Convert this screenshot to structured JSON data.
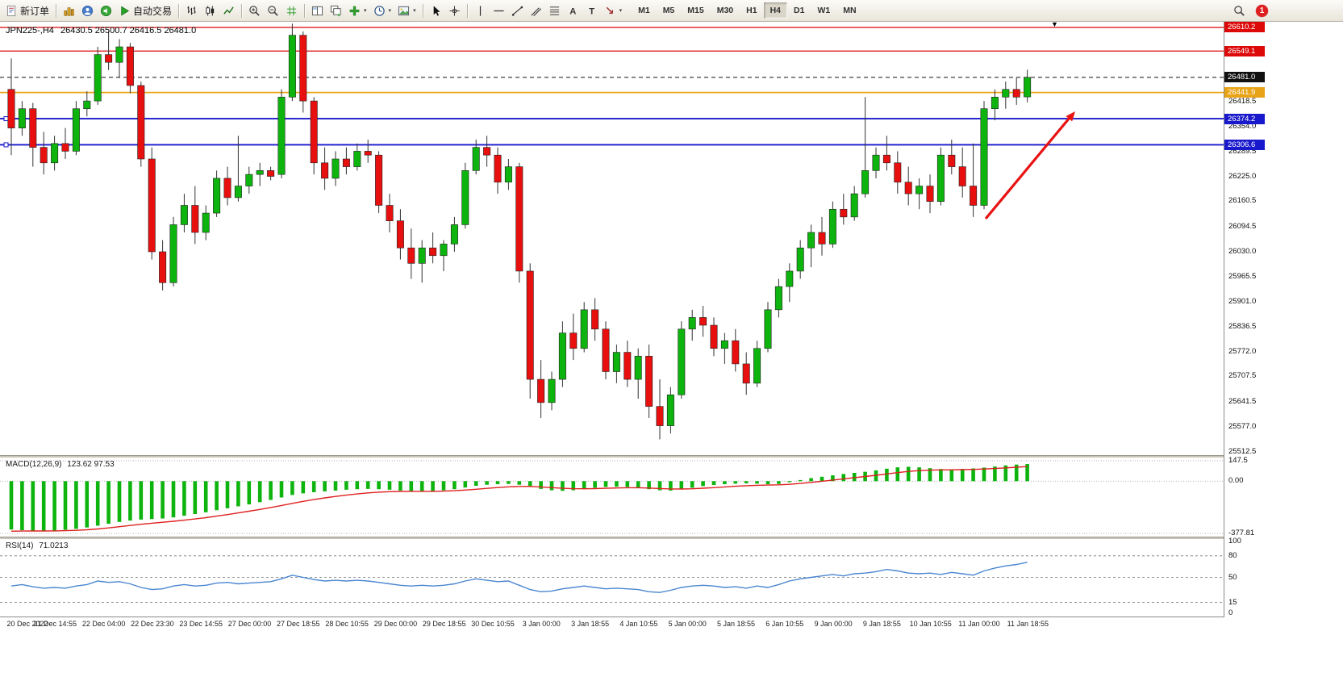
{
  "toolbar": {
    "buttons": [
      {
        "name": "new-order-button",
        "icon": "new-order-icon",
        "label": "新订单"
      },
      {
        "type": "sep"
      },
      {
        "name": "charts-button",
        "icon": "charts-icon"
      },
      {
        "name": "profile-button",
        "icon": "profile-icon"
      },
      {
        "name": "sound-button",
        "icon": "sound-icon"
      },
      {
        "name": "autotrade-button",
        "icon": "play-icon",
        "label": "自动交易"
      },
      {
        "type": "sep"
      },
      {
        "name": "bar-chart-button",
        "icon": "ohlc-bars-icon"
      },
      {
        "name": "candlestick-button",
        "icon": "candlestick-icon"
      },
      {
        "name": "line-chart-button",
        "icon": "line-chart-icon"
      },
      {
        "type": "sep"
      },
      {
        "name": "zoom-in-button",
        "icon": "zoom-in-icon"
      },
      {
        "name": "zoom-out-button",
        "icon": "zoom-out-icon"
      },
      {
        "name": "grid-button",
        "icon": "grid-icon"
      },
      {
        "type": "sep"
      },
      {
        "name": "tile-windows-button",
        "icon": "tile-windows-icon"
      },
      {
        "name": "cascade-windows-button",
        "icon": "cascade-windows-icon"
      },
      {
        "name": "add-indicator-button",
        "icon": "plus-icon",
        "caret": true
      },
      {
        "name": "period-button",
        "icon": "clock-icon",
        "caret": true
      },
      {
        "name": "template-button",
        "icon": "template-icon",
        "caret": true
      },
      {
        "type": "sep"
      },
      {
        "name": "cursor-button",
        "icon": "cursor-icon"
      },
      {
        "name": "crosshair-button",
        "icon": "crosshair-icon"
      },
      {
        "type": "sep"
      },
      {
        "name": "vertical-line-button",
        "icon": "vline-icon"
      },
      {
        "name": "horizontal-line-button",
        "icon": "hline-icon"
      },
      {
        "name": "trendline-button",
        "icon": "trendline-icon"
      },
      {
        "name": "channel-button",
        "icon": "channel-icon"
      },
      {
        "name": "fibonacci-button",
        "icon": "fibonacci-icon"
      },
      {
        "name": "text-button",
        "icon": "text-icon"
      },
      {
        "name": "label-button",
        "icon": "label-icon"
      },
      {
        "name": "arrows-button",
        "icon": "arrows-icon",
        "caret": true
      }
    ],
    "timeframes": [
      {
        "label": "M1"
      },
      {
        "label": "M5"
      },
      {
        "label": "M15"
      },
      {
        "label": "M30"
      },
      {
        "label": "H1"
      },
      {
        "label": "H4",
        "active": true
      },
      {
        "label": "D1"
      },
      {
        "label": "W1"
      },
      {
        "label": "MN"
      }
    ],
    "badge": "1"
  },
  "chart": {
    "symbol_title": "JPN225-,H4",
    "ohlc": "26430.5 26500.7 26416.5 26481.0",
    "up_color": "#0db40d",
    "down_color": "#e80f0f",
    "price_domain": {
      "top": 26624.8,
      "bottom": 25504.0
    },
    "levels": [
      {
        "label": "26610.2",
        "value": 26610.2,
        "color": "#dd0808",
        "style": "solid",
        "width": 1.3
      },
      {
        "label": "26549.1",
        "value": 26549.1,
        "color": "#dd0808",
        "style": "solid",
        "width": 1.3
      },
      {
        "label": "26481.0",
        "value": 26481.0,
        "color": "#111111",
        "style": "dashed",
        "width": 1,
        "current": true
      },
      {
        "label": "26441.9",
        "value": 26441.9,
        "color": "#e8a317",
        "style": "solid",
        "width": 1.7
      },
      {
        "label": "26374.2",
        "value": 26374.2,
        "color": "#1818cc",
        "style": "solid",
        "width": 1.8,
        "handles": true
      },
      {
        "label": "26306.6",
        "value": 26306.6,
        "color": "#1818cc",
        "style": "solid",
        "width": 1.8,
        "handles": true
      }
    ],
    "price_ticks": [
      "26418.5",
      "26354.0",
      "26289.5",
      "26225.0",
      "26160.5",
      "26094.5",
      "26030.0",
      "25965.5",
      "25901.0",
      "25836.5",
      "25772.0",
      "25707.5",
      "25641.5",
      "25577.0",
      "25512.5"
    ]
  },
  "indicators": {
    "macd_label": "MACD(12,26,9)",
    "macd_values": "123.62 97.53",
    "rsi_label": "RSI(14)",
    "rsi_value": "71.0213"
  },
  "time_axis": {
    "labels": [
      "20 Dec 2022",
      "21 Dec 14:55",
      "22 Dec 04:00",
      "22 Dec 23:30",
      "23 Dec 14:55",
      "27 Dec 00:00",
      "27 Dec 18:55",
      "28 Dec 10:55",
      "29 Dec 00:00",
      "29 Dec 18:55",
      "30 Dec 10:55",
      "3 Jan 00:00",
      "3 Jan 18:55",
      "4 Jan 10:55",
      "5 Jan 00:00",
      "5 Jan 18:55",
      "6 Jan 10:55",
      "9 Jan 00:00",
      "9 Jan 18:55",
      "10 Jan 10:55",
      "11 Jan 00:00",
      "11 Jan 18:55"
    ]
  },
  "chart_data": {
    "type": "candlestick",
    "symbol": "JPN225-",
    "timeframe": "H4",
    "candles": [
      [
        26450,
        26530,
        26280,
        26350
      ],
      [
        26350,
        26420,
        26330,
        26400
      ],
      [
        26400,
        26415,
        26250,
        26300
      ],
      [
        26300,
        26340,
        26230,
        26260
      ],
      [
        26260,
        26330,
        26240,
        26310
      ],
      [
        26310,
        26350,
        26270,
        26290
      ],
      [
        26290,
        26420,
        26280,
        26400
      ],
      [
        26400,
        26445,
        26380,
        26420
      ],
      [
        26420,
        26560,
        26410,
        26540
      ],
      [
        26540,
        26600,
        26500,
        26520
      ],
      [
        26520,
        26580,
        26480,
        26560
      ],
      [
        26560,
        26570,
        26440,
        26460
      ],
      [
        26460,
        26470,
        26250,
        26270
      ],
      [
        26270,
        26300,
        26010,
        26030
      ],
      [
        26030,
        26060,
        25930,
        25950
      ],
      [
        25950,
        26120,
        25940,
        26100
      ],
      [
        26100,
        26180,
        26080,
        26150
      ],
      [
        26150,
        26200,
        26050,
        26080
      ],
      [
        26080,
        26150,
        26060,
        26130
      ],
      [
        26130,
        26240,
        26120,
        26220
      ],
      [
        26220,
        26250,
        26150,
        26170
      ],
      [
        26170,
        26330,
        26160,
        26200
      ],
      [
        26200,
        26250,
        26180,
        26230
      ],
      [
        26230,
        26260,
        26200,
        26240
      ],
      [
        26240,
        26250,
        26215,
        26225
      ],
      [
        26230,
        26450,
        26220,
        26430
      ],
      [
        26430,
        26620,
        26420,
        26590
      ],
      [
        26590,
        26600,
        26390,
        26420
      ],
      [
        26420,
        26430,
        26230,
        26260
      ],
      [
        26260,
        26300,
        26190,
        26220
      ],
      [
        26220,
        26290,
        26200,
        26270
      ],
      [
        26270,
        26300,
        26230,
        26250
      ],
      [
        26250,
        26310,
        26240,
        26290
      ],
      [
        26290,
        26320,
        26260,
        26280
      ],
      [
        26280,
        26290,
        26130,
        26150
      ],
      [
        26150,
        26180,
        26080,
        26110
      ],
      [
        26110,
        26140,
        26010,
        26040
      ],
      [
        26040,
        26090,
        25960,
        26000
      ],
      [
        26000,
        26060,
        25950,
        26040
      ],
      [
        26040,
        26080,
        26000,
        26020
      ],
      [
        26020,
        26060,
        25980,
        26050
      ],
      [
        26050,
        26120,
        26030,
        26100
      ],
      [
        26100,
        26260,
        26090,
        26240
      ],
      [
        26240,
        26320,
        26230,
        26300
      ],
      [
        26300,
        26330,
        26250,
        26280
      ],
      [
        26280,
        26300,
        26180,
        26210
      ],
      [
        26210,
        26270,
        26190,
        26250
      ],
      [
        26250,
        26260,
        25950,
        25980
      ],
      [
        25980,
        26000,
        25650,
        25700
      ],
      [
        25700,
        25750,
        25600,
        25640
      ],
      [
        25640,
        25720,
        25620,
        25700
      ],
      [
        25700,
        25850,
        25680,
        25820
      ],
      [
        25820,
        25870,
        25750,
        25780
      ],
      [
        25780,
        25900,
        25770,
        25880
      ],
      [
        25880,
        25910,
        25800,
        25830
      ],
      [
        25830,
        25850,
        25700,
        25720
      ],
      [
        25720,
        25790,
        25690,
        25770
      ],
      [
        25770,
        25800,
        25680,
        25700
      ],
      [
        25700,
        25780,
        25650,
        25760
      ],
      [
        25760,
        25790,
        25600,
        25630
      ],
      [
        25630,
        25700,
        25545,
        25580
      ],
      [
        25580,
        25680,
        25560,
        25660
      ],
      [
        25660,
        25850,
        25650,
        25830
      ],
      [
        25830,
        25880,
        25800,
        25860
      ],
      [
        25860,
        25890,
        25810,
        25840
      ],
      [
        25840,
        25860,
        25760,
        25780
      ],
      [
        25780,
        25820,
        25740,
        25800
      ],
      [
        25800,
        25830,
        25720,
        25740
      ],
      [
        25740,
        25770,
        25660,
        25690
      ],
      [
        25690,
        25800,
        25680,
        25780
      ],
      [
        25780,
        25900,
        25770,
        25880
      ],
      [
        25880,
        25960,
        25860,
        25940
      ],
      [
        25940,
        26000,
        25900,
        25980
      ],
      [
        25980,
        26060,
        25960,
        26040
      ],
      [
        26040,
        26100,
        25990,
        26080
      ],
      [
        26080,
        26120,
        26020,
        26050
      ],
      [
        26050,
        26160,
        26040,
        26140
      ],
      [
        26140,
        26180,
        26100,
        26120
      ],
      [
        26120,
        26200,
        26110,
        26180
      ],
      [
        26180,
        26430,
        26170,
        26240
      ],
      [
        26240,
        26300,
        26220,
        26280
      ],
      [
        26280,
        26330,
        26240,
        26260
      ],
      [
        26260,
        26290,
        26180,
        26210
      ],
      [
        26210,
        26250,
        26150,
        26180
      ],
      [
        26180,
        26220,
        26140,
        26200
      ],
      [
        26200,
        26230,
        26130,
        26160
      ],
      [
        26160,
        26300,
        26150,
        26280
      ],
      [
        26280,
        26320,
        26230,
        26250
      ],
      [
        26250,
        26300,
        26170,
        26200
      ],
      [
        26200,
        26310,
        26120,
        26150
      ],
      [
        26150,
        26420,
        26140,
        26400
      ],
      [
        26400,
        26450,
        26370,
        26430
      ],
      [
        26430,
        26470,
        26400,
        26450
      ],
      [
        26450,
        26480,
        26410,
        26430
      ],
      [
        26430.5,
        26500.7,
        26416.5,
        26481.0
      ]
    ],
    "macd": {
      "histogram": [
        -350,
        -355,
        -358,
        -360,
        -358,
        -352,
        -345,
        -335,
        -322,
        -308,
        -295,
        -285,
        -278,
        -274,
        -270,
        -262,
        -250,
        -238,
        -225,
        -210,
        -196,
        -182,
        -168,
        -152,
        -136,
        -118,
        -100,
        -88,
        -80,
        -74,
        -68,
        -62,
        -58,
        -56,
        -58,
        -62,
        -68,
        -72,
        -74,
        -72,
        -66,
        -58,
        -46,
        -34,
        -26,
        -22,
        -20,
        -26,
        -40,
        -56,
        -66,
        -70,
        -66,
        -58,
        -48,
        -42,
        -40,
        -42,
        -48,
        -58,
        -66,
        -68,
        -60,
        -48,
        -36,
        -28,
        -22,
        -18,
        -16,
        -18,
        -22,
        -20,
        -8,
        8,
        22,
        32,
        42,
        52,
        60,
        68,
        78,
        90,
        100,
        104,
        100,
        94,
        88,
        86,
        88,
        92,
        98,
        106,
        114,
        120,
        124
      ],
      "range": {
        "max": 147.5,
        "min": -377.81
      },
      "scale": [
        {
          "label": "147.5",
          "value": 147.5
        },
        {
          "label": "0.00",
          "value": 0
        },
        {
          "label": "-377.81",
          "value": -377.81
        }
      ]
    },
    "rsi": {
      "values": [
        38,
        40,
        37,
        35,
        36,
        35,
        38,
        40,
        45,
        43,
        44,
        41,
        36,
        33,
        34,
        38,
        40,
        38,
        39,
        42,
        43,
        41,
        42,
        43,
        44,
        48,
        53,
        50,
        47,
        45,
        46,
        45,
        46,
        45,
        43,
        41,
        39,
        38,
        39,
        38,
        39,
        41,
        45,
        48,
        46,
        44,
        45,
        39,
        33,
        30,
        31,
        34,
        36,
        38,
        36,
        34,
        35,
        34,
        33,
        30,
        29,
        32,
        36,
        38,
        39,
        38,
        36,
        37,
        35,
        38,
        36,
        40,
        45,
        48,
        50,
        52,
        54,
        52,
        55,
        56,
        58,
        61,
        59,
        56,
        55,
        56,
        54,
        57,
        55,
        53,
        59,
        63,
        66,
        68,
        71
      ],
      "levels": [
        80,
        50,
        15
      ],
      "scale": [
        {
          "label": "100",
          "value": 100
        },
        {
          "label": "80",
          "value": 80
        },
        {
          "label": "50",
          "value": 50
        },
        {
          "label": "15",
          "value": 15
        },
        {
          "label": "0",
          "value": 0
        }
      ]
    }
  }
}
